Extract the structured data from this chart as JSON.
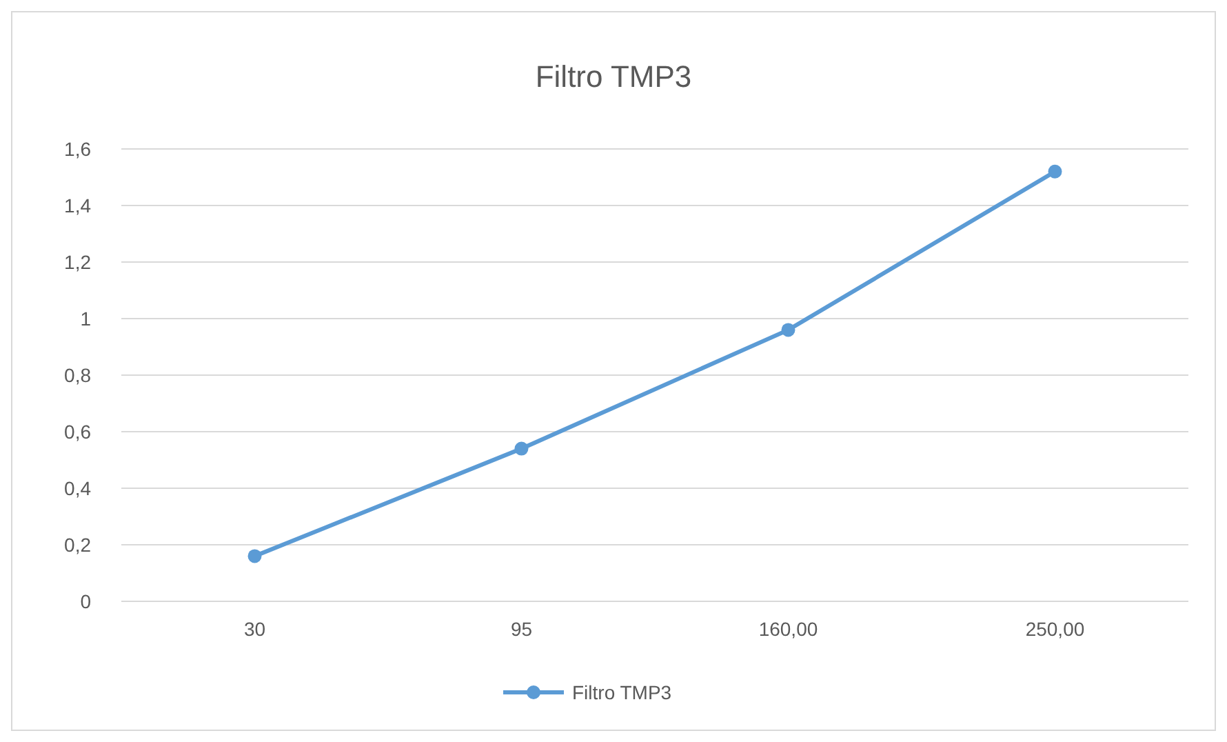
{
  "chart_data": {
    "type": "line",
    "title": "Filtro TMP3",
    "categories": [
      "30",
      "95",
      "160,00",
      "250,00"
    ],
    "series": [
      {
        "name": "Filtro TMP3",
        "color": "#5b9bd5",
        "values": [
          0.16,
          0.54,
          0.96,
          1.52
        ]
      }
    ],
    "ylim": [
      0,
      1.6
    ],
    "yticks": [
      0,
      {
        "value": 0.2,
        "label": "0,2"
      },
      {
        "value": 0.4,
        "label": "0,4"
      },
      {
        "value": 0.6,
        "label": "0,6"
      },
      {
        "value": 0.8,
        "label": "0,8"
      },
      1,
      {
        "value": 1.2,
        "label": "1,2"
      },
      {
        "value": 1.4,
        "label": "1,4"
      },
      {
        "value": 1.6,
        "label": "1,6"
      }
    ],
    "grid": "y",
    "legend": "bottom",
    "marker": "circle",
    "line_style": "solid"
  }
}
